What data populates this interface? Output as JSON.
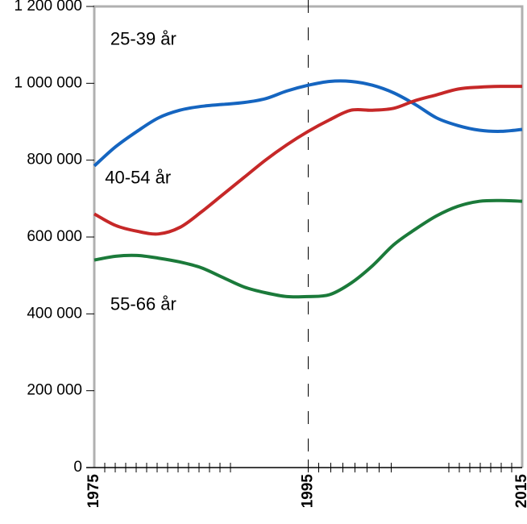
{
  "chart_data": {
    "type": "line",
    "title": "",
    "xlabel": "",
    "ylabel": "",
    "xlim": [
      1975,
      2015
    ],
    "ylim": [
      0,
      1200000
    ],
    "grid": false,
    "legend": "inline labels",
    "x_tick_labels": [
      "1975",
      "1995",
      "2015"
    ],
    "y_tick_labels": [
      "0",
      "200 000",
      "400 000",
      "600 000",
      "800 000",
      "1 000 000",
      "1 200 000"
    ],
    "y_ticks": [
      0,
      200000,
      400000,
      600000,
      800000,
      1000000,
      1200000
    ],
    "minor_x_ticks": [
      1978,
      1981,
      1984,
      1987,
      1990,
      1993,
      1996,
      1999,
      2002,
      2005,
      2008,
      2011,
      2014
    ],
    "reference_line": {
      "x": 1995,
      "style": "dashed"
    },
    "x": [
      1975,
      1977,
      1979,
      1981,
      1983,
      1985,
      1987,
      1989,
      1991,
      1993,
      1995,
      1997,
      1999,
      2001,
      2003,
      2005,
      2007,
      2009,
      2011,
      2013,
      2015
    ],
    "series": [
      {
        "name": "25-39 år",
        "color": "#1565c0",
        "values": [
          785000,
          835000,
          875000,
          910000,
          930000,
          940000,
          945000,
          950000,
          960000,
          980000,
          995000,
          1005000,
          1005000,
          995000,
          975000,
          945000,
          910000,
          890000,
          878000,
          875000,
          880000
        ]
      },
      {
        "name": "40-54 år",
        "color": "#c62828",
        "values": [
          660000,
          630000,
          615000,
          608000,
          625000,
          665000,
          710000,
          755000,
          800000,
          840000,
          875000,
          905000,
          930000,
          930000,
          935000,
          955000,
          970000,
          985000,
          990000,
          992000,
          992000
        ]
      },
      {
        "name": "55-66 år",
        "color": "#1b7a3a",
        "values": [
          540000,
          550000,
          552000,
          545000,
          535000,
          520000,
          495000,
          470000,
          455000,
          445000,
          445000,
          450000,
          480000,
          525000,
          580000,
          620000,
          655000,
          680000,
          693000,
          695000,
          693000
        ]
      }
    ],
    "series_labels": [
      {
        "text": "25-39 år",
        "x": 1976.5,
        "y": 1100000
      },
      {
        "text": "40-54 år",
        "x": 1976,
        "y": 740000
      },
      {
        "text": "55-66 år",
        "x": 1976.5,
        "y": 410000
      }
    ]
  }
}
